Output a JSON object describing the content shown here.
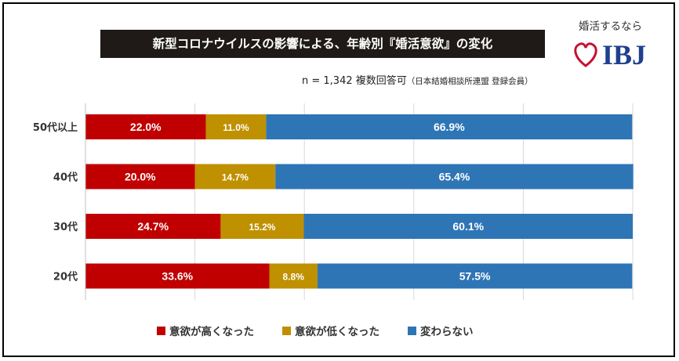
{
  "title": "新型コロナウイルスの影響による、年齢別『婚活意欲』の変化",
  "note_main": "n = 1,342 複数回答可",
  "note_small": "（日本結婚相談所連盟 登録会員）",
  "logo": {
    "caption": "婚活するなら",
    "mark": "IBJ",
    "heart_color": "#c8102e",
    "mark_color": "#1f3f8f"
  },
  "colors": {
    "series1": "#c00000",
    "series2": "#bf9000",
    "series3": "#2e75b6"
  },
  "chart_data": {
    "type": "bar",
    "orientation": "horizontal",
    "stacked": true,
    "percent_stacked": true,
    "categories": [
      "50代以上",
      "40代",
      "30代",
      "20代"
    ],
    "series": [
      {
        "name": "意欲が高くなった",
        "values": [
          22.0,
          20.0,
          24.7,
          33.6
        ],
        "labels": [
          "22.0%",
          "20.0%",
          "24.7%",
          "33.6%"
        ]
      },
      {
        "name": "意欲が低くなった",
        "values": [
          11.0,
          14.7,
          15.2,
          8.8
        ],
        "labels": [
          "11.0%",
          "14.7%",
          "15.2%",
          "8.8%"
        ]
      },
      {
        "name": "変わらない",
        "values": [
          66.9,
          65.4,
          60.1,
          57.5
        ],
        "labels": [
          "66.9%",
          "65.4%",
          "60.1%",
          "57.5%"
        ]
      }
    ],
    "xlim": [
      0,
      100
    ],
    "grid": "vertical",
    "legend": "bottom"
  }
}
